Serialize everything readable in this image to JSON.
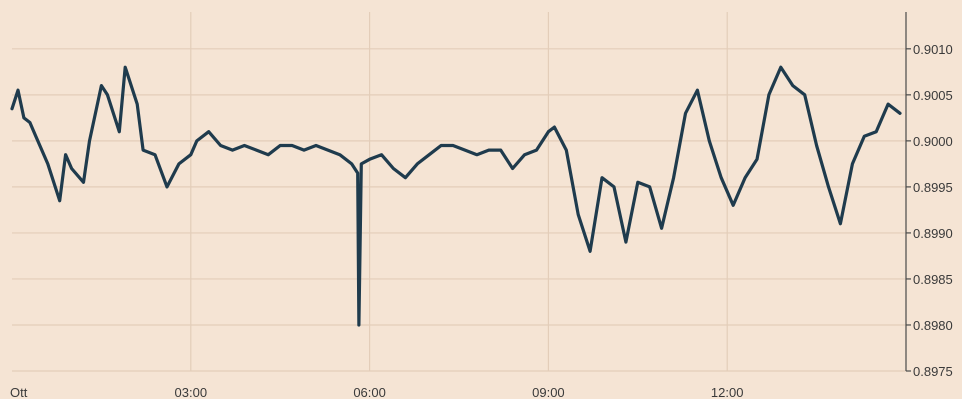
{
  "chart_data": {
    "type": "line",
    "title": "",
    "xlabel": "",
    "ylabel": "",
    "x_tick_labels": [
      "Ott",
      "03:00",
      "06:00",
      "09:00",
      "12:00"
    ],
    "x_tick_hours": [
      0,
      3,
      6,
      9,
      12
    ],
    "xlim_hours": [
      0,
      15
    ],
    "y_tick_labels": [
      "0.9010",
      "0.9005",
      "0.9000",
      "0.8995",
      "0.8990",
      "0.8985",
      "0.8980",
      "0.8975"
    ],
    "y_ticks": [
      0.901,
      0.9005,
      0.9,
      0.8995,
      0.899,
      0.8985,
      0.898,
      0.8975
    ],
    "ylim": [
      0.8975,
      0.9014
    ],
    "y_axis_side": "right",
    "grid": true,
    "legend": "none",
    "colors": {
      "background": "#f5e4d4",
      "line": "#1f3b4d",
      "grid": "#e3cdb9",
      "axis": "#4a4a4a"
    },
    "series": [
      {
        "x_hours": [
          0.0,
          0.1,
          0.2,
          0.3,
          0.4,
          0.6,
          0.8,
          0.9,
          1.0,
          1.2,
          1.3,
          1.5,
          1.6,
          1.8,
          1.9,
          2.0,
          2.1,
          2.2,
          2.4,
          2.6,
          2.8,
          3.0,
          3.1,
          3.3,
          3.5,
          3.7,
          3.9,
          4.1,
          4.3,
          4.5,
          4.7,
          4.9,
          5.1,
          5.3,
          5.5,
          5.7,
          5.8,
          5.82,
          5.86,
          6.0,
          6.2,
          6.4,
          6.6,
          6.8,
          7.0,
          7.2,
          7.4,
          7.6,
          7.8,
          8.0,
          8.2,
          8.4,
          8.6,
          8.8,
          9.0,
          9.1,
          9.3,
          9.5,
          9.7,
          9.9,
          10.1,
          10.3,
          10.5,
          10.7,
          10.9,
          11.1,
          11.3,
          11.5,
          11.7,
          11.9,
          12.1,
          12.3,
          12.5,
          12.7,
          12.9,
          13.1,
          13.3,
          13.5,
          13.7,
          13.9,
          14.1,
          14.3,
          14.5,
          14.7,
          14.9
        ],
        "values": [
          0.90035,
          0.90055,
          0.90025,
          0.9002,
          0.90005,
          0.89975,
          0.89935,
          0.89985,
          0.8997,
          0.89955,
          0.9,
          0.9006,
          0.9005,
          0.9001,
          0.9008,
          0.9006,
          0.9004,
          0.8999,
          0.89985,
          0.8995,
          0.89975,
          0.89985,
          0.9,
          0.9001,
          0.89995,
          0.8999,
          0.89995,
          0.8999,
          0.89985,
          0.89995,
          0.89995,
          0.8999,
          0.89995,
          0.8999,
          0.89985,
          0.89975,
          0.89965,
          0.898,
          0.89975,
          0.8998,
          0.89985,
          0.8997,
          0.8996,
          0.89975,
          0.89985,
          0.89995,
          0.89995,
          0.8999,
          0.89985,
          0.8999,
          0.8999,
          0.8997,
          0.89985,
          0.8999,
          0.9001,
          0.90015,
          0.8999,
          0.8992,
          0.8988,
          0.8996,
          0.8995,
          0.8989,
          0.89955,
          0.8995,
          0.89905,
          0.8996,
          0.9003,
          0.90055,
          0.9,
          0.8996,
          0.8993,
          0.8996,
          0.8998,
          0.9005,
          0.9008,
          0.9006,
          0.9005,
          0.89995,
          0.8995,
          0.8991,
          0.89975,
          0.90005,
          0.9001,
          0.9004,
          0.9003
        ]
      }
    ]
  }
}
